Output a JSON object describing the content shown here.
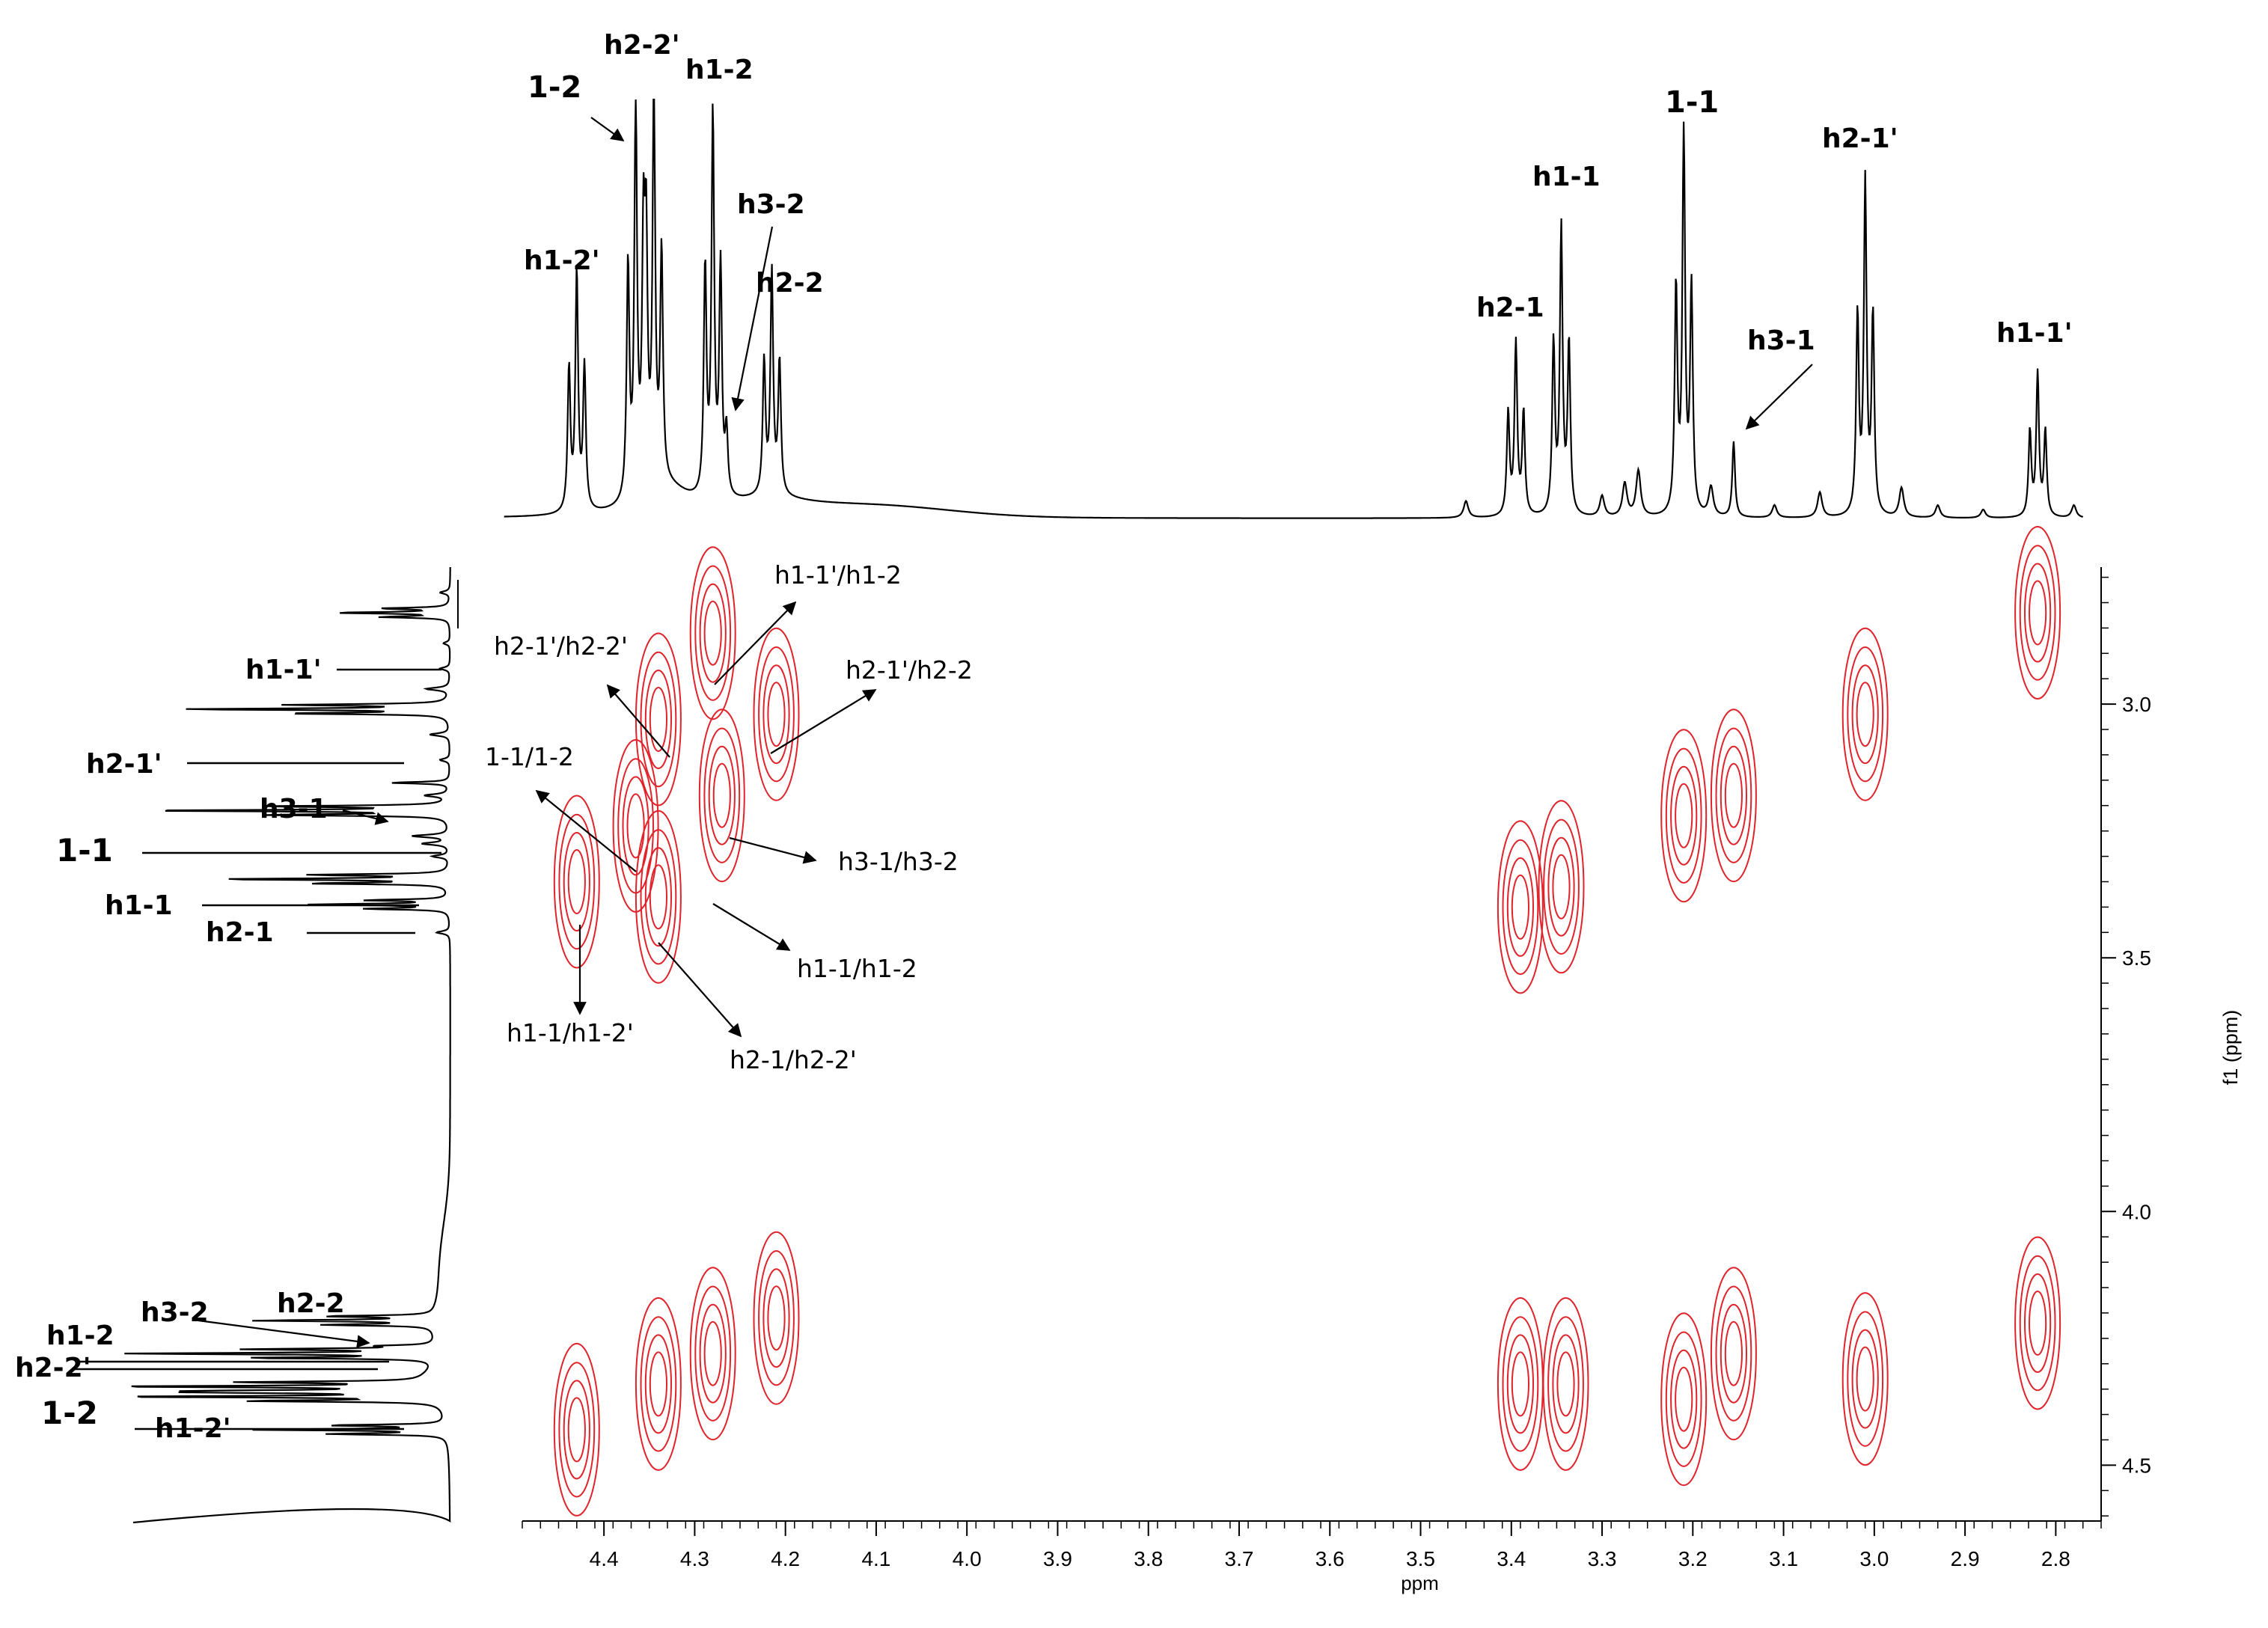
{
  "chart_data": {
    "type": "contour",
    "title": "",
    "xlabel": "ppm",
    "ylabel": "f1 (ppm)",
    "xlim": [
      4.49,
      2.75
    ],
    "ylim": [
      2.73,
      4.61
    ],
    "xticks": [
      4.4,
      4.3,
      4.2,
      4.1,
      4.0,
      3.9,
      3.8,
      3.7,
      3.6,
      3.5,
      3.4,
      3.3,
      3.2,
      3.1,
      3.0,
      2.9,
      2.8
    ],
    "yticks": [
      3.0,
      3.5,
      4.0,
      4.5
    ],
    "contour_color": "#e0242b",
    "trace_color": "#000000",
    "top_spectrum_peaks": [
      {
        "ppm": 4.43,
        "height": 0.57,
        "label": "h1-2'"
      },
      {
        "ppm": 4.365,
        "height": 0.93,
        "label": "1-2"
      },
      {
        "ppm": 4.345,
        "height": 0.92,
        "label": "h2-2'"
      },
      {
        "ppm": 4.28,
        "height": 0.91,
        "label": "h1-2"
      },
      {
        "ppm": 4.265,
        "height": 0.15,
        "label": "h3-2"
      },
      {
        "ppm": 4.215,
        "height": 0.53,
        "label": "h2-2"
      },
      {
        "ppm": 3.395,
        "height": 0.41,
        "label": "h2-1"
      },
      {
        "ppm": 3.345,
        "height": 0.68,
        "label": "h1-1"
      },
      {
        "ppm": 3.21,
        "height": 0.9,
        "label": "1-1"
      },
      {
        "ppm": 3.155,
        "height": 0.18,
        "label": "h3-1"
      },
      {
        "ppm": 3.01,
        "height": 0.79,
        "label": "h2-1'"
      },
      {
        "ppm": 2.82,
        "height": 0.34,
        "label": "h1-1'"
      }
    ],
    "cross_peaks": [
      {
        "x": 4.43,
        "y": 3.35
      },
      {
        "x": 4.34,
        "y": 3.03
      },
      {
        "x": 4.34,
        "y": 3.38
      },
      {
        "x": 4.365,
        "y": 3.24
      },
      {
        "x": 4.28,
        "y": 2.86
      },
      {
        "x": 4.27,
        "y": 3.18
      },
      {
        "x": 4.21,
        "y": 3.02
      },
      {
        "x": 3.39,
        "y": 3.4
      },
      {
        "x": 3.345,
        "y": 3.36
      },
      {
        "x": 3.21,
        "y": 3.22
      },
      {
        "x": 3.155,
        "y": 3.18
      },
      {
        "x": 3.01,
        "y": 3.02
      },
      {
        "x": 2.82,
        "y": 2.82
      },
      {
        "x": 4.43,
        "y": 4.43
      },
      {
        "x": 4.34,
        "y": 4.34
      },
      {
        "x": 4.28,
        "y": 4.28
      },
      {
        "x": 4.21,
        "y": 4.21
      },
      {
        "x": 3.39,
        "y": 4.34
      },
      {
        "x": 3.34,
        "y": 4.34
      },
      {
        "x": 3.21,
        "y": 4.37
      },
      {
        "x": 3.155,
        "y": 4.28
      },
      {
        "x": 3.01,
        "y": 4.33
      },
      {
        "x": 2.82,
        "y": 4.22
      }
    ],
    "top_labels": [
      {
        "text": "1-2",
        "bold": true
      },
      {
        "text": "h2-2'",
        "bold": true
      },
      {
        "text": "h1-2",
        "bold": true
      },
      {
        "text": "h3-2",
        "bold": true
      },
      {
        "text": "h2-2",
        "bold": true
      },
      {
        "text": "h1-2'",
        "bold": true
      },
      {
        "text": "1-1",
        "bold": true
      },
      {
        "text": "h1-1",
        "bold": true
      },
      {
        "text": "h2-1",
        "bold": true
      },
      {
        "text": "h2-1'",
        "bold": true
      },
      {
        "text": "h3-1",
        "bold": true
      },
      {
        "text": "h1-1'",
        "bold": true
      }
    ],
    "left_labels": [
      {
        "text": "h1-1'",
        "bold": true
      },
      {
        "text": "h2-1'",
        "bold": true
      },
      {
        "text": "h3-1",
        "bold": true
      },
      {
        "text": "1-1",
        "bold": true
      },
      {
        "text": "h1-1",
        "bold": true
      },
      {
        "text": "h2-1",
        "bold": true
      },
      {
        "text": "h3-2",
        "bold": true
      },
      {
        "text": "h2-2",
        "bold": true
      },
      {
        "text": "h1-2",
        "bold": true
      },
      {
        "text": "h2-2'",
        "bold": true
      },
      {
        "text": "1-2",
        "bold": true
      },
      {
        "text": "h1-2'",
        "bold": true
      }
    ],
    "cross_labels": [
      {
        "text": "h1-1'/h1-2"
      },
      {
        "text": "h2-1'/h2-2'"
      },
      {
        "text": "h2-1'/h2-2"
      },
      {
        "text": "1-1/1-2"
      },
      {
        "text": "h3-1/h3-2"
      },
      {
        "text": "h1-1/h1-2"
      },
      {
        "text": "h1-1/h1-2'"
      },
      {
        "text": "h2-1/h2-2'"
      }
    ]
  }
}
